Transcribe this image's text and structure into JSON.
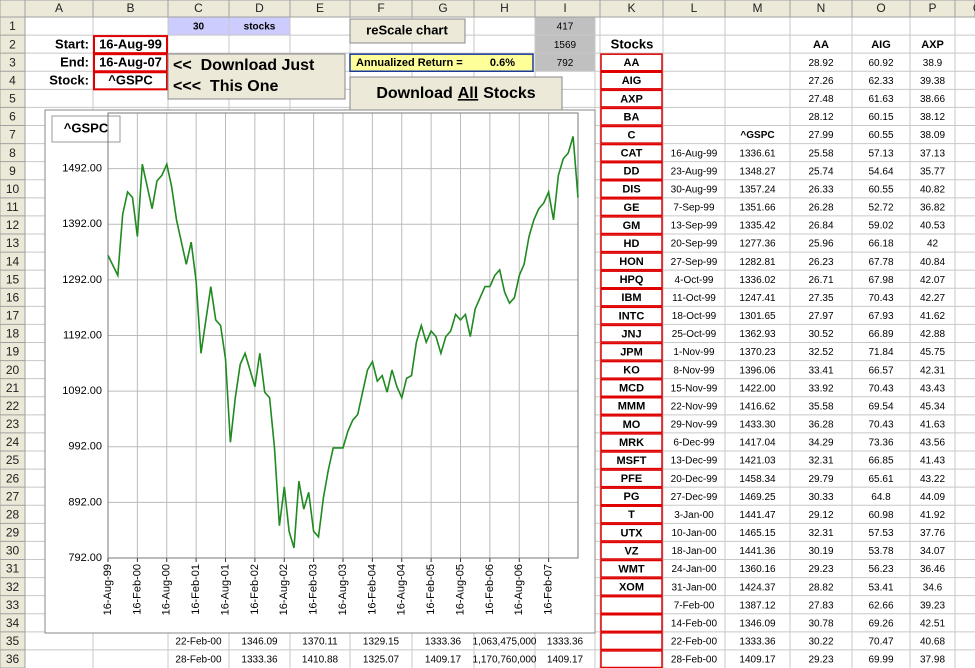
{
  "column_headers": [
    "A",
    "B",
    "C",
    "D",
    "E",
    "F",
    "G",
    "H",
    "I",
    "K",
    "L",
    "M",
    "N",
    "O",
    "P",
    "Q"
  ],
  "row_numbers": [
    1,
    2,
    3,
    4,
    5,
    6,
    7,
    8,
    9,
    10,
    11,
    12,
    13,
    14,
    15,
    16,
    17,
    18,
    19,
    20,
    21,
    22,
    23,
    24,
    25,
    26,
    27,
    28,
    29,
    30,
    31,
    32,
    33,
    34,
    35,
    36
  ],
  "labels": [
    "Start:",
    "End:",
    "Stock:"
  ],
  "inputs": [
    "16-Aug-99",
    "16-Aug-07",
    "^GSPC"
  ],
  "stock_count": 30,
  "stock_count_label": "stocks",
  "i_values": [
    417,
    1569,
    792
  ],
  "rescale_button": "reScale chart",
  "annualized_label": "Annualized Return =",
  "annualized_value": "0.6%",
  "download_one": [
    "<<  Download Just",
    "<<<  This One"
  ],
  "download_all": {
    "before": "Download",
    "underlined": "All",
    "after": "Stocks"
  },
  "stocks_header": "Stocks",
  "tickers": [
    "AA",
    "AIG",
    "AXP",
    "BA",
    "C",
    "CAT",
    "DD",
    "DIS",
    "GE",
    "GM",
    "HD",
    "HON",
    "HPQ",
    "IBM",
    "INTC",
    "JNJ",
    "JPM",
    "KO",
    "MCD",
    "MMM",
    "MO",
    "MRK",
    "MSFT",
    "PFE",
    "PG",
    "T",
    "UTX",
    "VZ",
    "WMT",
    "XOM"
  ],
  "index_label": "^GSPC",
  "dates": [
    "16-Aug-99",
    "23-Aug-99",
    "30-Aug-99",
    "7-Sep-99",
    "13-Sep-99",
    "20-Sep-99",
    "27-Sep-99",
    "4-Oct-99",
    "11-Oct-99",
    "18-Oct-99",
    "25-Oct-99",
    "1-Nov-99",
    "8-Nov-99",
    "15-Nov-99",
    "22-Nov-99",
    "29-Nov-99",
    "6-Dec-99",
    "13-Dec-99",
    "20-Dec-99",
    "27-Dec-99",
    "3-Jan-00",
    "10-Jan-00",
    "18-Jan-00",
    "24-Jan-00",
    "31-Jan-00",
    "7-Feb-00",
    "14-Feb-00",
    "22-Feb-00",
    "28-Feb-00"
  ],
  "index_values": [
    "1336.61",
    "1348.27",
    "1357.24",
    "1351.66",
    "1335.42",
    "1277.36",
    "1282.81",
    "1336.02",
    "1247.41",
    "1301.65",
    "1362.93",
    "1370.23",
    "1396.06",
    "1422.00",
    "1416.62",
    "1433.30",
    "1417.04",
    "1421.03",
    "1458.34",
    "1469.25",
    "1441.47",
    "1465.15",
    "1441.36",
    "1360.16",
    "1424.37",
    "1387.12",
    "1346.09",
    "1333.36",
    "1409.17"
  ],
  "price_headers": [
    "AA",
    "AIG",
    "AXP"
  ],
  "price_rows": [
    [
      "28.92",
      "60.92",
      "38.9"
    ],
    [
      "27.26",
      "62.33",
      "39.38"
    ],
    [
      "27.48",
      "61.63",
      "38.66"
    ],
    [
      "28.12",
      "60.15",
      "38.12"
    ],
    [
      "27.99",
      "60.55",
      "38.09"
    ],
    [
      "25.58",
      "57.13",
      "37.13"
    ],
    [
      "25.74",
      "54.64",
      "35.77"
    ],
    [
      "26.33",
      "60.55",
      "40.82"
    ],
    [
      "26.28",
      "52.72",
      "36.82"
    ],
    [
      "26.84",
      "59.02",
      "40.53"
    ],
    [
      "25.96",
      "66.18",
      "42"
    ],
    [
      "26.23",
      "67.78",
      "40.84"
    ],
    [
      "26.71",
      "67.98",
      "42.07"
    ],
    [
      "27.35",
      "70.43",
      "42.27"
    ],
    [
      "27.97",
      "67.93",
      "41.62"
    ],
    [
      "30.52",
      "66.89",
      "42.88"
    ],
    [
      "32.52",
      "71.84",
      "45.75"
    ],
    [
      "33.41",
      "66.57",
      "42.31"
    ],
    [
      "33.92",
      "70.43",
      "43.43"
    ],
    [
      "35.58",
      "69.54",
      "45.34"
    ],
    [
      "36.28",
      "70.43",
      "41.63"
    ],
    [
      "34.29",
      "73.36",
      "43.56"
    ],
    [
      "32.31",
      "66.85",
      "41.43"
    ],
    [
      "29.79",
      "65.61",
      "43.22"
    ],
    [
      "30.33",
      "64.8",
      "44.09"
    ],
    [
      "29.12",
      "60.98",
      "41.92"
    ],
    [
      "32.31",
      "57.53",
      "37.76"
    ],
    [
      "30.19",
      "53.78",
      "34.07"
    ],
    [
      "29.23",
      "56.23",
      "36.46"
    ],
    [
      "28.82",
      "53.41",
      "34.6"
    ],
    [
      "27.83",
      "62.66",
      "39.23"
    ],
    [
      "30.78",
      "69.26",
      "42.51"
    ],
    [
      "30.22",
      "70.47",
      "40.68"
    ],
    [
      "29.23",
      "69.99",
      "37.98"
    ]
  ],
  "bottom_rows": [
    [
      "22-Feb-00",
      "1346.09",
      "1370.11",
      "1329.15",
      "1333.36",
      "1,063,475,000",
      "1333.36"
    ],
    [
      "28-Feb-00",
      "1333.36",
      "1410.88",
      "1325.07",
      "1409.17",
      "1,170,760,000",
      "1409.17"
    ]
  ],
  "chart_data": {
    "type": "line",
    "title": "^GSPC",
    "color": "#1f8a1f",
    "categories": [
      "16-Aug-99",
      null,
      null,
      null,
      null,
      null,
      "16-Feb-00",
      null,
      null,
      null,
      null,
      null,
      "16-Aug-00",
      null,
      null,
      null,
      null,
      null,
      "16-Feb-01",
      null,
      null,
      null,
      null,
      null,
      "16-Aug-01",
      null,
      null,
      null,
      null,
      null,
      "16-Feb-02",
      null,
      null,
      null,
      null,
      null,
      "16-Aug-02",
      null,
      null,
      null,
      null,
      null,
      "16-Feb-03",
      null,
      null,
      null,
      null,
      null,
      "16-Aug-03",
      null,
      null,
      null,
      null,
      null,
      "16-Feb-04",
      null,
      null,
      null,
      null,
      null,
      "16-Aug-04",
      null,
      null,
      null,
      null,
      null,
      "16-Feb-05",
      null,
      null,
      null,
      null,
      null,
      "16-Aug-05",
      null,
      null,
      null,
      null,
      null,
      "16-Feb-06",
      null,
      null,
      null,
      null,
      null,
      "16-Aug-06",
      null,
      null,
      null,
      null,
      null,
      "16-Feb-07",
      null,
      null,
      null,
      null,
      null,
      null
    ],
    "values": [
      1336,
      1318,
      1300,
      1410,
      1450,
      1440,
      1370,
      1500,
      1460,
      1420,
      1470,
      1480,
      1500,
      1460,
      1400,
      1360,
      1320,
      1360,
      1290,
      1160,
      1220,
      1280,
      1220,
      1210,
      1150,
      1000,
      1080,
      1140,
      1160,
      1130,
      1100,
      1160,
      1090,
      1080,
      990,
      850,
      920,
      840,
      810,
      930,
      880,
      910,
      840,
      830,
      900,
      950,
      990,
      990,
      990,
      1020,
      1040,
      1050,
      1090,
      1130,
      1145,
      1110,
      1120,
      1090,
      1130,
      1100,
      1080,
      1115,
      1120,
      1180,
      1210,
      1180,
      1200,
      1190,
      1160,
      1190,
      1200,
      1230,
      1220,
      1230,
      1190,
      1240,
      1260,
      1280,
      1280,
      1300,
      1310,
      1270,
      1250,
      1260,
      1300,
      1320,
      1370,
      1400,
      1420,
      1430,
      1450,
      1400,
      1480,
      1510,
      1520,
      1550,
      1440
    ],
    "ylim": [
      792,
      1592
    ],
    "yticks": [
      {
        "value": 792,
        "label": "792.00"
      },
      {
        "value": 892,
        "label": "892.00"
      },
      {
        "value": 992,
        "label": "992.00"
      },
      {
        "value": 1092,
        "label": "1092.00"
      },
      {
        "value": 1192,
        "label": "1192.00"
      },
      {
        "value": 1292,
        "label": "1292.00"
      },
      {
        "value": 1392,
        "label": "1392.00"
      },
      {
        "value": 1492,
        "label": "1492.00"
      }
    ],
    "grid": true
  }
}
